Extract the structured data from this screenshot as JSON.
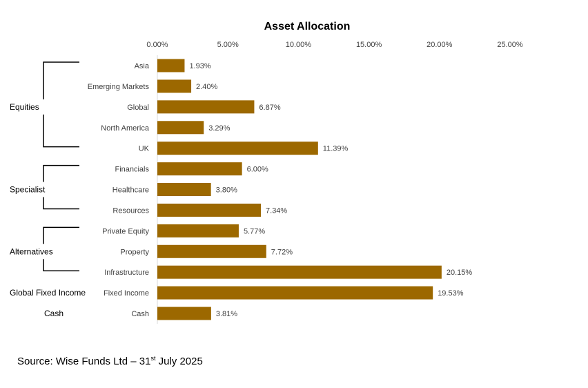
{
  "chart_data": {
    "type": "bar",
    "orientation": "horizontal",
    "title": "Asset Allocation",
    "categories": [
      "Asia",
      "Emerging Markets",
      "Global",
      "North America",
      "UK",
      "Financials",
      "Healthcare",
      "Resources",
      "Private Equity",
      "Property",
      "Infrastructure",
      "Fixed Income",
      "Cash"
    ],
    "values": [
      1.93,
      2.4,
      6.87,
      3.29,
      11.39,
      6.0,
      3.8,
      7.34,
      5.77,
      7.72,
      20.15,
      19.53,
      3.81
    ],
    "value_labels": [
      "1.93%",
      "2.40%",
      "6.87%",
      "3.29%",
      "11.39%",
      "6.00%",
      "3.80%",
      "7.34%",
      "5.77%",
      "7.72%",
      "20.15%",
      "19.53%",
      "3.81%"
    ],
    "xlim": [
      0,
      25
    ],
    "xticks": [
      0,
      5,
      10,
      15,
      20,
      25
    ],
    "xtick_labels": [
      "0.00%",
      "5.00%",
      "10.00%",
      "15.00%",
      "20.00%",
      "25.00%"
    ],
    "axis_position": "top",
    "grid": false,
    "legend": "none",
    "groups": [
      {
        "label": "Equities",
        "first": 0,
        "last": 4
      },
      {
        "label": "Specialist",
        "first": 5,
        "last": 7
      },
      {
        "label": "Alternatives",
        "first": 8,
        "last": 10
      },
      {
        "label": "Global Fixed Income",
        "first": 11,
        "last": 11
      },
      {
        "label": "Cash",
        "first": 12,
        "last": 12
      }
    ],
    "colors": {
      "bar": "#9C6800",
      "axis": "#d9d9d9",
      "bracket": "#000000",
      "text": "#404040"
    }
  },
  "source": {
    "prefix": "Source: Wise Funds Ltd – 31",
    "superscript": "st",
    "suffix": " July 2025"
  }
}
